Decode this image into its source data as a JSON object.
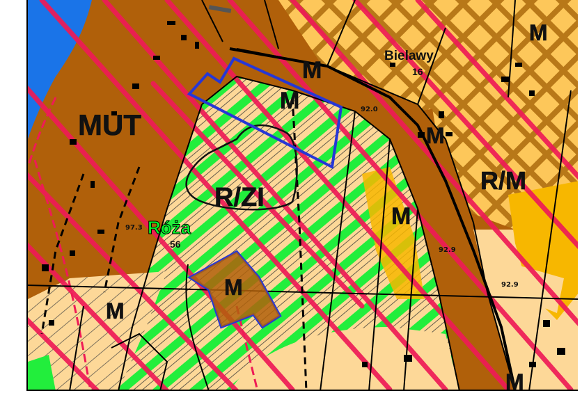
{
  "map": {
    "zone_labels": {
      "mut": "MUT",
      "m_top": "M",
      "m_plot_upper": "M",
      "rzl": "R/ZI",
      "m_east": "M",
      "m_mid_right": "M",
      "rm": "R/M",
      "m_plot_lower": "M",
      "m_lower_left": "M",
      "m_bottom_right": "M",
      "m_edge_right": "M"
    },
    "places": {
      "bielawy": {
        "name": "Bielawy",
        "number": "16"
      },
      "roza": {
        "name": "Róża",
        "number": "56"
      }
    },
    "elevations": {
      "e1": "92.0",
      "e2": "92.9",
      "e3": "97.3",
      "e4": "92.9"
    },
    "colors": {
      "residential_brown": "#b0600a",
      "agricultural_tan": "#fdd898",
      "orange_zone": "#f7b700",
      "green_zone": "#22ee3c",
      "water_blue": "#1a74e8",
      "red_hatch": "#ee1b56",
      "plot_outline_blue": "#2637d6"
    }
  }
}
